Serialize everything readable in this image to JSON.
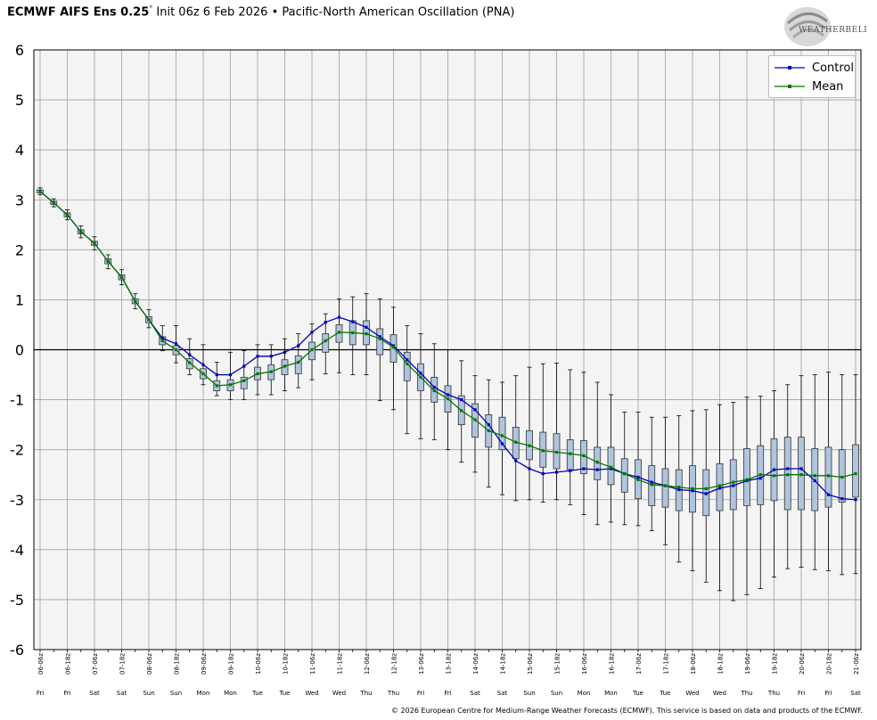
{
  "header": {
    "model": "ECMWF AIFS Ens 0.25",
    "degree": "°",
    "rest": " Init 06z 6 Feb 2026 • Pacific-North American Oscillation (PNA)"
  },
  "logo_text": "WEATHERBELL",
  "copyright": "© 2026 European Centre for Medium-Range Weather Forecasts (ECMWF). This service is based on data and products of the ECMWF.",
  "colors": {
    "control": "#0000bb",
    "mean": "#007700",
    "box_fill": "#b0c4de",
    "plot_bg": "#f4f4f4",
    "grid": "#a0a0a0"
  },
  "chart_data": {
    "type": "box",
    "title": "Pacific-North American Oscillation (PNA)",
    "ylim": [
      -6,
      6
    ],
    "yticks": [
      "6",
      "5",
      "4",
      "3",
      "2",
      "1",
      "0",
      "-1",
      "-2",
      "-3",
      "-4",
      "-5",
      "-6"
    ],
    "grid": true,
    "legend_position": "top-right",
    "x_tick_labels": [
      "06-06z",
      "06-18z",
      "07-06z",
      "07-18z",
      "08-06z",
      "08-18z",
      "09-06z",
      "09-18z",
      "10-06z",
      "10-18z",
      "11-06z",
      "11-18z",
      "12-06z",
      "12-18z",
      "13-06z",
      "13-18z",
      "14-06z",
      "14-18z",
      "15-06z",
      "15-18z",
      "16-06z",
      "16-18z",
      "17-06z",
      "17-18z",
      "18-06z",
      "18-18z",
      "19-06z",
      "19-18z",
      "20-06z",
      "20-18z",
      "21-06z"
    ],
    "day_labels": [
      "Fri",
      "Fri",
      "Sat",
      "Sat",
      "Sun",
      "Sun",
      "Mon",
      "Mon",
      "Tue",
      "Tue",
      "Wed",
      "Wed",
      "Thu",
      "Thu",
      "Fri",
      "Fri",
      "Sat",
      "Sat",
      "Sun",
      "Sun",
      "Mon",
      "Mon",
      "Tue",
      "Tue",
      "Wed",
      "Wed",
      "Thu",
      "Thu",
      "Fri",
      "Fri",
      "Sat"
    ],
    "series": [
      {
        "name": "Control",
        "values": [
          3.17,
          2.94,
          2.7,
          2.36,
          2.13,
          1.77,
          1.45,
          0.97,
          0.6,
          0.23,
          0.12,
          -0.1,
          -0.3,
          -0.5,
          -0.5,
          -0.33,
          -0.13,
          -0.13,
          -0.05,
          0.08,
          0.35,
          0.55,
          0.65,
          0.56,
          0.45,
          0.26,
          0.08,
          -0.2,
          -0.47,
          -0.75,
          -0.9,
          -1.0,
          -1.2,
          -1.5,
          -1.88,
          -2.22,
          -2.38,
          -2.48,
          -2.45,
          -2.42,
          -2.38,
          -2.4,
          -2.38,
          -2.48,
          -2.55,
          -2.65,
          -2.72,
          -2.8,
          -2.82,
          -2.88,
          -2.77,
          -2.72,
          -2.62,
          -2.57,
          -2.4,
          -2.38,
          -2.38,
          -2.62,
          -2.9,
          -2.98,
          -3.0
        ]
      },
      {
        "name": "Mean",
        "values": [
          3.17,
          2.94,
          2.7,
          2.36,
          2.13,
          1.77,
          1.45,
          0.97,
          0.6,
          0.18,
          0.0,
          -0.26,
          -0.48,
          -0.72,
          -0.7,
          -0.62,
          -0.48,
          -0.44,
          -0.33,
          -0.25,
          0.0,
          0.18,
          0.35,
          0.34,
          0.32,
          0.22,
          0.05,
          -0.28,
          -0.55,
          -0.82,
          -0.98,
          -1.22,
          -1.4,
          -1.62,
          -1.72,
          -1.85,
          -1.92,
          -2.02,
          -2.05,
          -2.08,
          -2.12,
          -2.25,
          -2.35,
          -2.48,
          -2.6,
          -2.7,
          -2.72,
          -2.75,
          -2.78,
          -2.78,
          -2.72,
          -2.65,
          -2.6,
          -2.5,
          -2.52,
          -2.5,
          -2.5,
          -2.52,
          -2.52,
          -2.55,
          -2.48
        ]
      }
    ],
    "boxes": [
      {
        "q1": 3.14,
        "q3": 3.2,
        "min": 3.1,
        "max": 3.24
      },
      {
        "q1": 2.91,
        "q3": 2.97,
        "min": 2.86,
        "max": 3.02
      },
      {
        "q1": 2.66,
        "q3": 2.74,
        "min": 2.6,
        "max": 2.8
      },
      {
        "q1": 2.32,
        "q3": 2.4,
        "min": 2.24,
        "max": 2.48
      },
      {
        "q1": 2.09,
        "q3": 2.17,
        "min": 2.0,
        "max": 2.26
      },
      {
        "q1": 1.72,
        "q3": 1.82,
        "min": 1.62,
        "max": 1.9
      },
      {
        "q1": 1.4,
        "q3": 1.5,
        "min": 1.3,
        "max": 1.6
      },
      {
        "q1": 0.92,
        "q3": 1.02,
        "min": 0.82,
        "max": 1.12
      },
      {
        "q1": 0.54,
        "q3": 0.66,
        "min": 0.44,
        "max": 0.8
      },
      {
        "q1": 0.1,
        "q3": 0.26,
        "min": -0.02,
        "max": 0.48
      },
      {
        "q1": -0.1,
        "q3": 0.08,
        "min": -0.26,
        "max": 0.48
      },
      {
        "q1": -0.38,
        "q3": -0.18,
        "min": -0.5,
        "max": 0.22
      },
      {
        "q1": -0.58,
        "q3": -0.38,
        "min": -0.7,
        "max": 0.1
      },
      {
        "q1": -0.82,
        "q3": -0.62,
        "min": -0.92,
        "max": -0.25
      },
      {
        "q1": -0.82,
        "q3": -0.6,
        "min": -1.0,
        "max": -0.05
      },
      {
        "q1": -0.78,
        "q3": -0.55,
        "min": -1.0,
        "max": -0.02
      },
      {
        "q1": -0.6,
        "q3": -0.35,
        "min": -0.9,
        "max": 0.1
      },
      {
        "q1": -0.6,
        "q3": -0.3,
        "min": -0.9,
        "max": 0.1
      },
      {
        "q1": -0.5,
        "q3": -0.2,
        "min": -0.82,
        "max": 0.22
      },
      {
        "q1": -0.48,
        "q3": -0.12,
        "min": -0.76,
        "max": 0.32
      },
      {
        "q1": -0.2,
        "q3": 0.15,
        "min": -0.6,
        "max": 0.52
      },
      {
        "q1": -0.05,
        "q3": 0.32,
        "min": -0.48,
        "max": 0.72
      },
      {
        "q1": 0.15,
        "q3": 0.5,
        "min": -0.46,
        "max": 1.02
      },
      {
        "q1": 0.1,
        "q3": 0.58,
        "min": -0.5,
        "max": 1.06
      },
      {
        "q1": 0.1,
        "q3": 0.58,
        "min": -0.5,
        "max": 1.12
      },
      {
        "q1": -0.1,
        "q3": 0.42,
        "min": -1.02,
        "max": 1.02
      },
      {
        "q1": -0.25,
        "q3": 0.3,
        "min": -1.2,
        "max": 0.85
      },
      {
        "q1": -0.62,
        "q3": -0.05,
        "min": -1.68,
        "max": 0.48
      },
      {
        "q1": -0.82,
        "q3": -0.28,
        "min": -1.78,
        "max": 0.32
      },
      {
        "q1": -1.05,
        "q3": -0.55,
        "min": -1.8,
        "max": 0.12
      },
      {
        "q1": -1.25,
        "q3": -0.72,
        "min": -2.0,
        "max": 0.0
      },
      {
        "q1": -1.5,
        "q3": -0.92,
        "min": -2.25,
        "max": -0.22
      },
      {
        "q1": -1.75,
        "q3": -1.08,
        "min": -2.45,
        "max": -0.52
      },
      {
        "q1": -1.95,
        "q3": -1.3,
        "min": -2.75,
        "max": -0.6
      },
      {
        "q1": -2.0,
        "q3": -1.35,
        "min": -2.9,
        "max": -0.65
      },
      {
        "q1": -2.18,
        "q3": -1.55,
        "min": -3.02,
        "max": -0.52
      },
      {
        "q1": -2.2,
        "q3": -1.62,
        "min": -3.0,
        "max": -0.35
      },
      {
        "q1": -2.35,
        "q3": -1.65,
        "min": -3.05,
        "max": -0.28
      },
      {
        "q1": -2.38,
        "q3": -1.68,
        "min": -3.0,
        "max": -0.27
      },
      {
        "q1": -2.4,
        "q3": -1.8,
        "min": -3.1,
        "max": -0.4
      },
      {
        "q1": -2.48,
        "q3": -1.82,
        "min": -3.3,
        "max": -0.45
      },
      {
        "q1": -2.6,
        "q3": -1.95,
        "min": -3.5,
        "max": -0.65
      },
      {
        "q1": -2.7,
        "q3": -1.95,
        "min": -3.45,
        "max": -0.9
      },
      {
        "q1": -2.85,
        "q3": -2.18,
        "min": -3.5,
        "max": -1.25
      },
      {
        "q1": -2.98,
        "q3": -2.2,
        "min": -3.52,
        "max": -1.25
      },
      {
        "q1": -3.12,
        "q3": -2.32,
        "min": -3.62,
        "max": -1.35
      },
      {
        "q1": -3.15,
        "q3": -2.38,
        "min": -3.9,
        "max": -1.35
      },
      {
        "q1": -3.22,
        "q3": -2.4,
        "min": -4.25,
        "max": -1.32
      },
      {
        "q1": -3.25,
        "q3": -2.32,
        "min": -4.42,
        "max": -1.22
      },
      {
        "q1": -3.32,
        "q3": -2.4,
        "min": -4.65,
        "max": -1.2
      },
      {
        "q1": -3.22,
        "q3": -2.28,
        "min": -4.82,
        "max": -1.1
      },
      {
        "q1": -3.2,
        "q3": -2.2,
        "min": -5.02,
        "max": -1.05
      },
      {
        "q1": -3.12,
        "q3": -1.98,
        "min": -4.9,
        "max": -0.95
      },
      {
        "q1": -3.1,
        "q3": -1.92,
        "min": -4.78,
        "max": -0.93
      },
      {
        "q1": -3.02,
        "q3": -1.78,
        "min": -4.55,
        "max": -0.82
      },
      {
        "q1": -3.2,
        "q3": -1.75,
        "min": -4.38,
        "max": -0.7
      },
      {
        "q1": -3.2,
        "q3": -1.75,
        "min": -4.35,
        "max": -0.52
      },
      {
        "q1": -3.22,
        "q3": -1.98,
        "min": -4.4,
        "max": -0.5
      },
      {
        "q1": -3.15,
        "q3": -1.95,
        "min": -4.42,
        "max": -0.45
      },
      {
        "q1": -3.05,
        "q3": -2.0,
        "min": -4.5,
        "max": -0.5
      },
      {
        "q1": -2.95,
        "q3": -1.9,
        "min": -4.48,
        "max": -0.5
      }
    ]
  }
}
